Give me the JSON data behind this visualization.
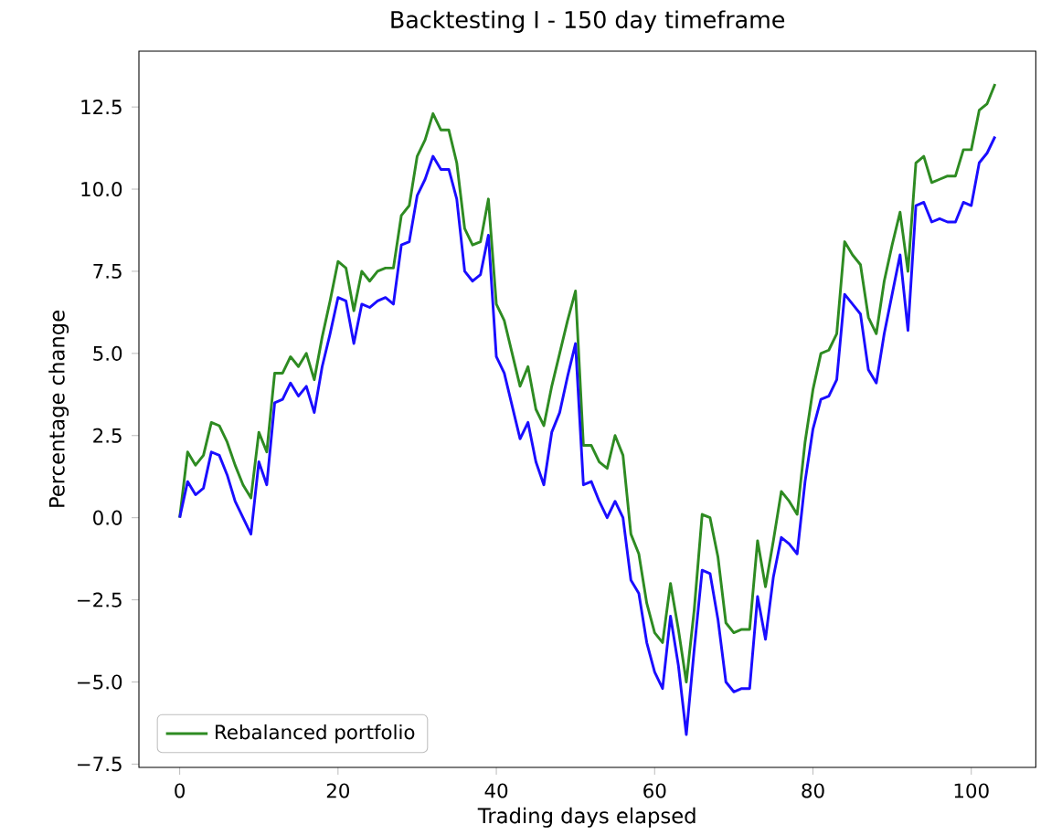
{
  "chart_data": {
    "type": "line",
    "title": "Backtesting I - 150 day timeframe",
    "xlabel": "Trading days elapsed",
    "ylabel": "Percentage change",
    "x": [
      0,
      1,
      2,
      3,
      4,
      5,
      6,
      7,
      8,
      9,
      10,
      11,
      12,
      13,
      14,
      15,
      16,
      17,
      18,
      19,
      20,
      21,
      22,
      23,
      24,
      25,
      26,
      27,
      28,
      29,
      30,
      31,
      32,
      33,
      34,
      35,
      36,
      37,
      38,
      39,
      40,
      41,
      42,
      43,
      44,
      45,
      46,
      47,
      48,
      49,
      50,
      51,
      52,
      53,
      54,
      55,
      56,
      57,
      58,
      59,
      60,
      61,
      62,
      63,
      64,
      65,
      66,
      67,
      68,
      69,
      70,
      71,
      72,
      73,
      74,
      75,
      76,
      77,
      78,
      79,
      80,
      81,
      82,
      83,
      84,
      85,
      86,
      87,
      88,
      89,
      90,
      91,
      92,
      93,
      94,
      95,
      96,
      97,
      98,
      99,
      100,
      101,
      102,
      103
    ],
    "series": [
      {
        "name": "Rebalanced portfolio",
        "color": "#2e8b22",
        "values": [
          0,
          2.0,
          1.6,
          1.9,
          2.9,
          2.8,
          2.3,
          1.6,
          1.0,
          0.6,
          2.6,
          2.0,
          4.4,
          4.4,
          4.9,
          4.6,
          5.0,
          4.2,
          5.5,
          6.6,
          7.8,
          7.6,
          6.3,
          7.5,
          7.2,
          7.5,
          7.6,
          7.6,
          9.2,
          9.5,
          11.0,
          11.5,
          12.3,
          11.8,
          11.8,
          10.8,
          8.8,
          8.3,
          8.4,
          9.7,
          6.5,
          6.0,
          5.0,
          4.0,
          4.6,
          3.3,
          2.8,
          4.0,
          5.0,
          6.0,
          6.9,
          2.2,
          2.2,
          1.7,
          1.5,
          2.5,
          1.9,
          -0.5,
          -1.1,
          -2.6,
          -3.5,
          -3.8,
          -2.0,
          -3.4,
          -5.0,
          -2.8,
          0.1,
          0.0,
          -1.2,
          -3.2,
          -3.5,
          -3.4,
          -3.4,
          -0.7,
          -2.1,
          -0.7,
          0.8,
          0.5,
          0.1,
          2.3,
          3.9,
          5.0,
          5.1,
          5.6,
          8.4,
          8.0,
          7.7,
          6.1,
          5.6,
          7.2,
          8.3,
          9.3,
          7.5,
          10.8,
          11.0,
          10.2,
          10.3,
          10.4,
          10.4,
          11.2,
          11.2,
          12.4,
          12.6,
          13.2
        ]
      },
      {
        "color": "#1a0dff",
        "values": [
          0,
          1.1,
          0.7,
          0.9,
          2.0,
          1.9,
          1.3,
          0.5,
          0.0,
          -0.5,
          1.7,
          1.0,
          3.5,
          3.6,
          4.1,
          3.7,
          4.0,
          3.2,
          4.6,
          5.6,
          6.7,
          6.6,
          5.3,
          6.5,
          6.4,
          6.6,
          6.7,
          6.5,
          8.3,
          8.4,
          9.8,
          10.3,
          11.0,
          10.6,
          10.6,
          9.7,
          7.5,
          7.2,
          7.4,
          8.6,
          4.9,
          4.4,
          3.4,
          2.4,
          2.9,
          1.7,
          1.0,
          2.6,
          3.2,
          4.3,
          5.3,
          1.0,
          1.1,
          0.5,
          0.0,
          0.5,
          0.0,
          -1.9,
          -2.3,
          -3.8,
          -4.7,
          -5.2,
          -3.0,
          -4.5,
          -6.6,
          -4.0,
          -1.6,
          -1.7,
          -3.1,
          -5.0,
          -5.3,
          -5.2,
          -5.2,
          -2.4,
          -3.7,
          -1.8,
          -0.6,
          -0.8,
          -1.1,
          1.1,
          2.7,
          3.6,
          3.7,
          4.2,
          6.8,
          6.5,
          6.2,
          4.5,
          4.1,
          5.6,
          6.8,
          8.0,
          5.7,
          9.5,
          9.6,
          9.0,
          9.1,
          9.0,
          9.0,
          9.6,
          9.5,
          10.8,
          11.1,
          11.6
        ]
      }
    ],
    "xlim": [
      -5.15,
      108.15
    ],
    "ylim": [
      -7.6,
      14.2
    ],
    "xticks": [
      0,
      20,
      40,
      60,
      80,
      100
    ],
    "yticks": [
      {
        "value": -7.5,
        "label": "−7.5"
      },
      {
        "value": -5,
        "label": "−5.0"
      },
      {
        "value": -2.5,
        "label": "−2.5"
      },
      {
        "value": 0,
        "label": "0.0"
      },
      {
        "value": 2.5,
        "label": "2.5"
      },
      {
        "value": 5,
        "label": "5.0"
      },
      {
        "value": 7.5,
        "label": "7.5"
      },
      {
        "value": 10,
        "label": "10.0"
      },
      {
        "value": 12.5,
        "label": "12.5"
      }
    ],
    "legend": "bottom left",
    "marker": "none",
    "line_style": "solid",
    "grid": false
  }
}
